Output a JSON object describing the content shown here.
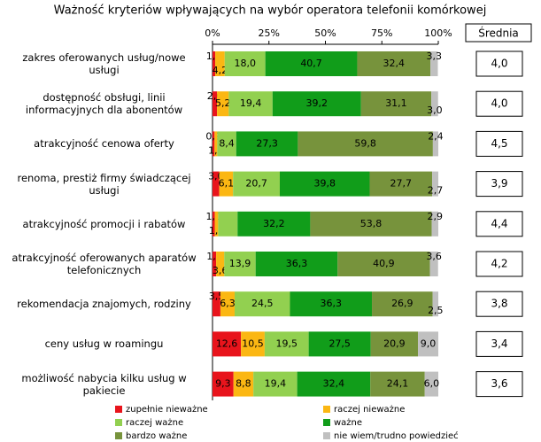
{
  "chart_data": {
    "type": "stacked-barh",
    "title": "Ważność kryteriów wpływających na wybór operatora telefonii komórkowej",
    "categories": [
      "zakres oferowanych usług/nowe usługi",
      "dostępność obsługi, linii informacyjnych dla abonentów",
      "atrakcyjność cenowa oferty",
      "renoma, prestiż firmy świadczącej usługi",
      "atrakcyjność promocji i rabatów",
      "atrakcyjność oferowanych aparatów telefonicznych",
      "rekomendacja znajomych, rodziny",
      "ceny usług w roamingu",
      "możliwość nabycia kilku usług w pakiecie"
    ],
    "series": [
      {
        "name": "zupełnie nieważne",
        "color": "#e8141c",
        "values": [
          1.2,
          2.0,
          0.9,
          3.0,
          1.0,
          1.6,
          3.5,
          12.6,
          9.3
        ],
        "value_labels": [
          "1,2",
          "2,0",
          "0,9",
          "3,0",
          "1,0",
          "1,6",
          "3,5",
          "12,6",
          "9,3"
        ]
      },
      {
        "name": "raczej nieważne",
        "color": "#fbb713",
        "values": [
          4.2,
          5.2,
          1.2,
          6.1,
          1.5,
          3.6,
          6.3,
          10.5,
          8.8
        ],
        "value_labels": [
          "4,2",
          "5,2",
          "1,2",
          "6,1",
          "1,5",
          "3,6",
          "6,3",
          "10,5",
          "8,8"
        ]
      },
      {
        "name": "raczej ważne",
        "color": "#92d050",
        "values": [
          18.0,
          19.4,
          8.4,
          20.7,
          8.6,
          13.9,
          24.5,
          19.5,
          19.4
        ],
        "value_labels": [
          "18,0",
          "19,4",
          "8,4",
          "20,7",
          null,
          "13,9",
          "24,5",
          "19,5",
          "19,4"
        ]
      },
      {
        "name": "ważne",
        "color": "#119d1a",
        "values": [
          40.7,
          39.2,
          27.3,
          39.8,
          32.2,
          36.3,
          36.3,
          27.5,
          32.4
        ],
        "value_labels": [
          "40,7",
          "39,2",
          "27,3",
          "39,8",
          "32,2",
          "36,3",
          "36,3",
          "27,5",
          "32,4"
        ]
      },
      {
        "name": "bardzo ważne",
        "color": "#77933c",
        "values": [
          32.4,
          31.1,
          59.8,
          27.7,
          53.8,
          40.9,
          26.9,
          20.9,
          24.1
        ],
        "value_labels": [
          "32,4",
          "31,1",
          "59,8",
          "27,7",
          "53,8",
          "40,9",
          "26,9",
          "20,9",
          "24,1"
        ]
      },
      {
        "name": "nie wiem/trudno powiedzieć",
        "color": "#c0c0c0",
        "values": [
          3.3,
          3.0,
          2.4,
          2.7,
          2.9,
          3.6,
          2.5,
          9.0,
          6.0
        ],
        "value_labels": [
          "3,3",
          "3,0",
          "2,4",
          "2,7",
          "2,9",
          "3,6",
          "2,5",
          "9,0",
          "6,0"
        ]
      }
    ],
    "xlim": [
      0,
      100
    ],
    "xticks": [
      {
        "value": 0,
        "label": "0%"
      },
      {
        "value": 25,
        "label": "25%"
      },
      {
        "value": 50,
        "label": "50%"
      },
      {
        "value": 75,
        "label": "75%"
      },
      {
        "value": 100,
        "label": "100%"
      }
    ],
    "averages": {
      "header": "Średnia",
      "values": [
        4.0,
        4.0,
        4.5,
        3.9,
        4.4,
        4.2,
        3.8,
        3.4,
        3.6
      ],
      "value_labels": [
        "4,0",
        "4,0",
        "4,5",
        "3,9",
        "4,4",
        "4,2",
        "3,8",
        "3,4",
        "3,6"
      ]
    },
    "legend": "bottom"
  }
}
